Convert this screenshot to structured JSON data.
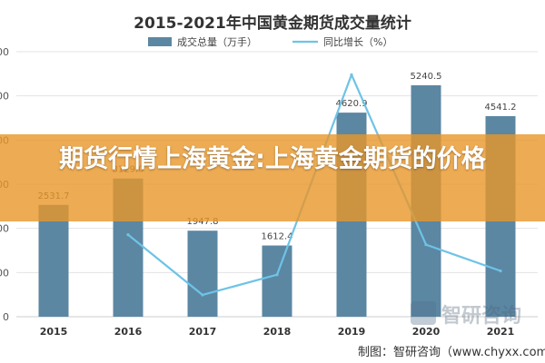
{
  "chart_data": {
    "type": "bar",
    "title": "2015-2021年中国黄金期货成交量统计",
    "categories": [
      "2015",
      "2016",
      "2017",
      "2018",
      "2019",
      "2020",
      "2021"
    ],
    "series": [
      {
        "name": "成交总量（万手）",
        "type": "bar",
        "color": "#5b87a3",
        "values": [
          2531.7,
          3129.0,
          1947.8,
          1612.4,
          4620.9,
          5240.5,
          4541.2
        ],
        "labels": [
          "2531.7",
          "3129.0",
          "1947.8",
          "1612.4",
          "4620.9",
          "5240.5",
          "4541.2"
        ]
      },
      {
        "name": "同比增长（%）",
        "type": "line",
        "color": "#6ec3e6",
        "values": [
          null,
          23.6,
          -37.8,
          -17.2,
          186.6,
          13.4,
          -13.3
        ]
      }
    ],
    "ylim": [
      0,
      6000
    ],
    "y_ticks": [
      0,
      1000,
      2000,
      3000,
      4000,
      5000,
      6000
    ],
    "y_tick_labels": [
      "0",
      "1000",
      "2000",
      "3000",
      "4000",
      "5000",
      "6000"
    ],
    "y2lim": [
      -60,
      210
    ],
    "grid": true,
    "legend_position": "top-center",
    "colors": {
      "bar": "#5b87a3",
      "line": "#6ec3e6",
      "banner": "#e89628"
    }
  },
  "banner_text": "期货行情上海黄金:上海黄金期货的价格",
  "watermark": "智研咨询",
  "source_text": "制图：智研咨询（www.chyxx.com）"
}
